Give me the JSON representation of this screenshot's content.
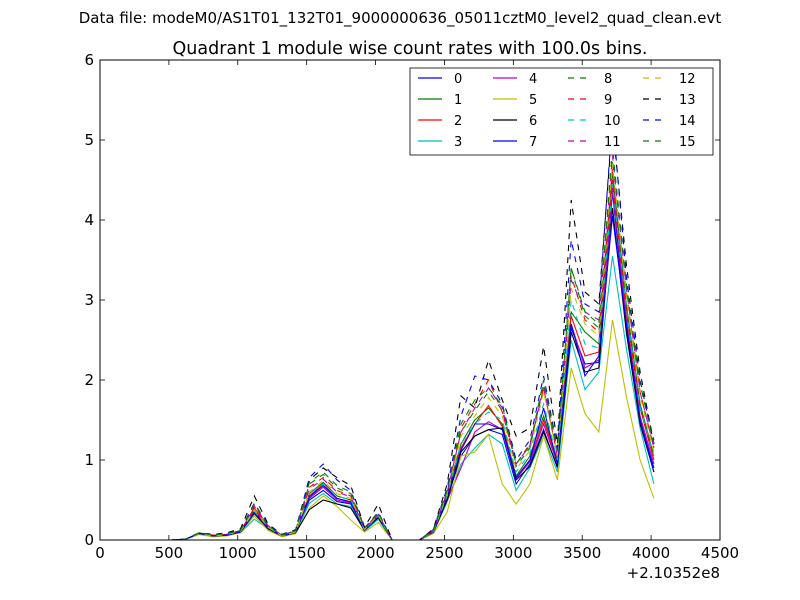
{
  "chart_data": {
    "type": "line",
    "suptitle": "Data file: modeM0/AS1T01_132T01_9000000636_05011cztM0_level2_quad_clean.evt",
    "title": "Quadrant 1 module wise count rates with 100.0s bins.",
    "xlabel": "",
    "ylabel": "",
    "offset_label": "+2.10352e8",
    "xlim": [
      0,
      4500
    ],
    "ylim": [
      0,
      6
    ],
    "xticks": [
      0,
      500,
      1000,
      1500,
      2000,
      2500,
      3000,
      3500,
      4000,
      4500
    ],
    "yticks": [
      0,
      1,
      2,
      3,
      4,
      5,
      6
    ],
    "legend_position": "top-right",
    "legend_columns": 4,
    "x": [
      420,
      520,
      620,
      720,
      820,
      920,
      1020,
      1120,
      1220,
      1320,
      1420,
      1520,
      1620,
      1720,
      1820,
      1920,
      2020,
      2120,
      2220,
      2320,
      2420,
      2520,
      2620,
      2720,
      2820,
      2920,
      3020,
      3120,
      3220,
      3320,
      3420,
      3520,
      3620,
      3720,
      3820,
      3920,
      4020
    ],
    "series": [
      {
        "name": "0",
        "color": "#0000ff",
        "dash": "solid",
        "values": [
          0,
          0,
          0.01,
          0.08,
          0.05,
          0.06,
          0.1,
          0.36,
          0.15,
          0.05,
          0.1,
          0.5,
          0.62,
          0.48,
          0.45,
          0.12,
          0.28,
          0,
          0,
          0,
          0.1,
          0.52,
          1.05,
          1.3,
          1.38,
          1.32,
          0.7,
          0.95,
          1.38,
          0.9,
          2.65,
          2.2,
          2.22,
          4.35,
          2.65,
          1.5,
          0.9
        ]
      },
      {
        "name": "1",
        "color": "#008000",
        "dash": "solid",
        "values": [
          0,
          0,
          0.01,
          0.09,
          0.06,
          0.07,
          0.12,
          0.38,
          0.17,
          0.06,
          0.11,
          0.58,
          0.72,
          0.55,
          0.5,
          0.14,
          0.3,
          0,
          0,
          0,
          0.12,
          0.58,
          1.2,
          1.5,
          1.65,
          1.45,
          0.8,
          1.05,
          1.55,
          1.0,
          2.85,
          2.6,
          2.45,
          4.6,
          2.95,
          1.7,
          1.05
        ]
      },
      {
        "name": "2",
        "color": "#ff0000",
        "dash": "solid",
        "values": [
          0,
          0,
          0.01,
          0.08,
          0.06,
          0.07,
          0.11,
          0.4,
          0.16,
          0.05,
          0.1,
          0.55,
          0.7,
          0.52,
          0.48,
          0.13,
          0.31,
          0,
          0,
          0,
          0.11,
          0.55,
          1.15,
          1.45,
          1.68,
          1.42,
          0.78,
          1.0,
          1.5,
          0.98,
          2.8,
          2.3,
          2.35,
          4.5,
          2.85,
          1.65,
          1.0
        ]
      },
      {
        "name": "3",
        "color": "#00bfbf",
        "dash": "solid",
        "values": [
          0,
          0,
          0.01,
          0.07,
          0.05,
          0.06,
          0.09,
          0.26,
          0.14,
          0.05,
          0.09,
          0.46,
          0.58,
          0.45,
          0.42,
          0.11,
          0.26,
          0,
          0,
          0,
          0.09,
          0.48,
          0.95,
          1.15,
          1.32,
          1.2,
          0.62,
          0.9,
          1.3,
          0.85,
          2.5,
          1.88,
          2.1,
          3.55,
          2.4,
          1.4,
          0.7
        ]
      },
      {
        "name": "4",
        "color": "#bf00bf",
        "dash": "solid",
        "values": [
          0,
          0,
          0.01,
          0.08,
          0.05,
          0.07,
          0.1,
          0.35,
          0.15,
          0.05,
          0.1,
          0.52,
          0.66,
          0.5,
          0.46,
          0.12,
          0.29,
          0,
          0,
          0,
          0.1,
          0.5,
          0.9,
          1.35,
          1.48,
          1.38,
          0.76,
          0.98,
          1.45,
          0.95,
          2.7,
          2.15,
          2.25,
          4.4,
          2.75,
          1.55,
          0.95
        ]
      },
      {
        "name": "5",
        "color": "#bfbf00",
        "dash": "solid",
        "values": [
          0,
          0,
          0.01,
          0.07,
          0.04,
          0.05,
          0.09,
          0.3,
          0.12,
          0.04,
          0.08,
          0.4,
          0.55,
          0.42,
          0.25,
          0.1,
          0.22,
          0,
          0,
          0,
          0.08,
          0.35,
          1.05,
          1.1,
          1.32,
          0.7,
          0.45,
          0.7,
          1.3,
          0.75,
          2.15,
          1.58,
          1.35,
          2.75,
          1.8,
          1.0,
          0.52
        ]
      },
      {
        "name": "6",
        "color": "#000000",
        "dash": "solid",
        "values": [
          0,
          0,
          0.01,
          0.08,
          0.05,
          0.06,
          0.1,
          0.33,
          0.14,
          0.05,
          0.09,
          0.38,
          0.5,
          0.45,
          0.4,
          0.12,
          0.28,
          0,
          0,
          0,
          0.1,
          0.5,
          1.1,
          1.3,
          1.38,
          1.4,
          0.75,
          0.92,
          1.35,
          0.92,
          2.6,
          2.1,
          2.15,
          4.15,
          2.6,
          1.45,
          0.85
        ]
      },
      {
        "name": "7",
        "color": "#0000ff",
        "dash": "solid",
        "values": [
          0,
          0,
          0.01,
          0.08,
          0.05,
          0.06,
          0.1,
          0.34,
          0.15,
          0.05,
          0.1,
          0.54,
          0.68,
          0.52,
          0.47,
          0.12,
          0.3,
          0,
          0,
          0,
          0.1,
          0.55,
          1.12,
          1.45,
          1.45,
          1.38,
          0.78,
          1.0,
          1.65,
          0.95,
          2.7,
          2.05,
          2.3,
          4.05,
          2.7,
          1.5,
          0.85
        ]
      },
      {
        "name": "8",
        "color": "#008000",
        "dash": "dashed",
        "values": [
          0,
          0,
          0.01,
          0.09,
          0.06,
          0.08,
          0.13,
          0.42,
          0.18,
          0.06,
          0.12,
          0.7,
          0.82,
          0.65,
          0.58,
          0.15,
          0.33,
          0,
          0,
          0,
          0.13,
          0.62,
          1.35,
          1.62,
          1.85,
          1.62,
          0.92,
          1.15,
          1.95,
          1.1,
          3.4,
          2.8,
          2.65,
          4.75,
          3.2,
          1.95,
          1.25
        ]
      },
      {
        "name": "9",
        "color": "#ff0000",
        "dash": "dashed",
        "values": [
          0,
          0,
          0.01,
          0.09,
          0.06,
          0.08,
          0.12,
          0.44,
          0.17,
          0.06,
          0.11,
          0.66,
          0.78,
          0.62,
          0.55,
          0.14,
          0.32,
          0,
          0,
          0,
          0.12,
          0.6,
          1.4,
          1.7,
          2.0,
          1.6,
          0.95,
          1.2,
          1.9,
          1.05,
          3.3,
          2.75,
          2.6,
          4.65,
          3.1,
          1.85,
          1.15
        ]
      },
      {
        "name": "10",
        "color": "#00bfbf",
        "dash": "dashed",
        "values": [
          0,
          0,
          0.01,
          0.08,
          0.05,
          0.07,
          0.11,
          0.36,
          0.16,
          0.05,
          0.1,
          0.58,
          0.7,
          0.55,
          0.5,
          0.13,
          0.3,
          0,
          0,
          0,
          0.11,
          0.55,
          1.2,
          1.45,
          1.6,
          1.5,
          0.85,
          1.08,
          1.7,
          1.0,
          3.0,
          2.45,
          2.4,
          4.45,
          2.9,
          1.65,
          1.05
        ]
      },
      {
        "name": "11",
        "color": "#bf00bf",
        "dash": "dashed",
        "values": [
          0,
          0,
          0.01,
          0.09,
          0.06,
          0.08,
          0.12,
          0.42,
          0.17,
          0.06,
          0.11,
          0.64,
          0.76,
          0.6,
          0.54,
          0.14,
          0.32,
          0,
          0,
          0,
          0.12,
          0.6,
          1.35,
          1.65,
          1.9,
          1.65,
          0.95,
          1.18,
          1.9,
          1.08,
          3.25,
          2.85,
          2.75,
          4.8,
          3.15,
          1.85,
          1.15
        ]
      },
      {
        "name": "12",
        "color": "#bfbf00",
        "dash": "dashed",
        "values": [
          0,
          0,
          0.01,
          0.08,
          0.05,
          0.07,
          0.11,
          0.38,
          0.16,
          0.05,
          0.1,
          0.6,
          0.74,
          0.58,
          0.52,
          0.13,
          0.31,
          0,
          0,
          0,
          0.11,
          0.58,
          1.3,
          1.55,
          1.78,
          1.55,
          0.88,
          1.12,
          1.85,
          1.05,
          3.15,
          2.7,
          2.55,
          4.7,
          3.05,
          1.8,
          1.1
        ]
      },
      {
        "name": "13",
        "color": "#000000",
        "dash": "dashed",
        "values": [
          0,
          0,
          0.01,
          0.09,
          0.07,
          0.09,
          0.14,
          0.55,
          0.2,
          0.07,
          0.13,
          0.75,
          0.9,
          0.78,
          0.68,
          0.16,
          0.45,
          0,
          0,
          0,
          0.14,
          0.7,
          1.8,
          1.65,
          2.25,
          1.75,
          1.3,
          1.4,
          2.42,
          1.2,
          4.25,
          3.1,
          2.95,
          5.2,
          3.45,
          2.1,
          1.2
        ]
      },
      {
        "name": "14",
        "color": "#0000ff",
        "dash": "dashed",
        "values": [
          0,
          0,
          0.01,
          0.09,
          0.07,
          0.08,
          0.13,
          0.46,
          0.19,
          0.07,
          0.12,
          0.78,
          0.95,
          0.75,
          0.62,
          0.15,
          0.35,
          0,
          0,
          0,
          0.13,
          0.65,
          1.55,
          2.05,
          2.0,
          1.7,
          1.0,
          1.25,
          2.05,
          1.15,
          3.75,
          2.95,
          2.85,
          5.3,
          3.3,
          2.0,
          1.2
        ]
      },
      {
        "name": "15",
        "color": "#008000",
        "dash": "dashed",
        "values": [
          0,
          0,
          0.01,
          0.09,
          0.06,
          0.08,
          0.12,
          0.45,
          0.18,
          0.06,
          0.12,
          0.72,
          0.85,
          0.68,
          0.6,
          0.15,
          0.34,
          0,
          0,
          0,
          0.12,
          0.62,
          1.45,
          1.75,
          1.9,
          1.68,
          0.95,
          1.18,
          2.0,
          1.12,
          3.4,
          2.85,
          2.7,
          4.9,
          3.2,
          1.95,
          1.2
        ]
      }
    ]
  }
}
